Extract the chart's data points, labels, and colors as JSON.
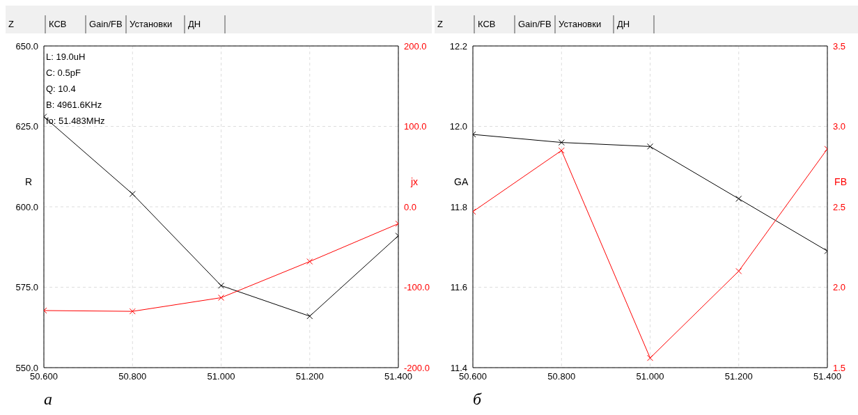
{
  "chart_data": [
    {
      "type": "line",
      "x": [
        50.6,
        50.8,
        51.0,
        51.2,
        51.4
      ],
      "xlim": [
        50.6,
        51.4
      ],
      "xticks": [
        {
          "value": 50.6,
          "label": "50.600"
        },
        {
          "value": 50.8,
          "label": "50.800"
        },
        {
          "value": 51.0,
          "label": "51.000"
        },
        {
          "value": 51.2,
          "label": "51.200"
        },
        {
          "value": 51.4,
          "label": "51.400"
        }
      ],
      "ylabel": "R",
      "y2label": "jx",
      "ylim": [
        550,
        650
      ],
      "yticks": [
        {
          "value": 550,
          "label": "550.0"
        },
        {
          "value": 575,
          "label": "575.0"
        },
        {
          "value": 600,
          "label": "600.0"
        },
        {
          "value": 625,
          "label": "625.0"
        },
        {
          "value": 650,
          "label": "650.0"
        }
      ],
      "y2lim": [
        -200,
        200
      ],
      "y2ticks": [
        {
          "value": -200,
          "label": "-200.0"
        },
        {
          "value": -100,
          "label": "-100.0"
        },
        {
          "value": 0,
          "label": "0.0"
        },
        {
          "value": 100,
          "label": "100.0"
        },
        {
          "value": 200,
          "label": "200.0"
        }
      ],
      "series": [
        {
          "color": "#000000",
          "values": [
            628,
            604,
            575.5,
            566,
            591
          ]
        },
        {
          "color": "#ff0000",
          "axis": "y2",
          "values": [
            -129,
            -130,
            -113,
            -68,
            -21
          ]
        }
      ],
      "grid": true,
      "marker": "cross",
      "line_style": "solid",
      "legend": false,
      "annotations": [
        "Z",
        "КСВ",
        "Gain/FB",
        "Установки",
        "ДН",
        "L: 19.0uH",
        "C: 0.5pF",
        "Q: 10.4",
        "B: 4961.6KHz",
        "fo: 51.483MHz",
        "а"
      ]
    },
    {
      "type": "line",
      "x": [
        50.6,
        50.8,
        51.0,
        51.2,
        51.4
      ],
      "xlim": [
        50.6,
        51.4
      ],
      "xticks": [
        {
          "value": 50.6,
          "label": "50.600"
        },
        {
          "value": 50.8,
          "label": "50.800"
        },
        {
          "value": 51.0,
          "label": "51.000"
        },
        {
          "value": 51.2,
          "label": "51.200"
        },
        {
          "value": 51.4,
          "label": "51.400"
        }
      ],
      "ylabel": "GA",
      "y2label": "FB",
      "ylim": [
        11.4,
        12.2
      ],
      "yticks": [
        11.4,
        11.6,
        11.8,
        {
          "value": 12,
          "label": "12.0"
        },
        12.2
      ],
      "y2lim": [
        1.5,
        3.5
      ],
      "y2ticks": [
        1.5,
        {
          "value": 2,
          "label": "2.0"
        },
        2.5,
        {
          "value": 3,
          "label": "3.0"
        },
        3.5
      ],
      "series": [
        {
          "color": "#000000",
          "values": [
            11.98,
            11.96,
            11.95,
            11.82,
            11.69
          ]
        },
        {
          "color": "#ff0000",
          "axis": "y2",
          "values": [
            2.47,
            2.85,
            1.56,
            2.1,
            2.86
          ]
        }
      ],
      "grid": true,
      "marker": "cross",
      "line_style": "solid",
      "legend": false,
      "annotations": [
        "Z",
        "КСВ",
        "Gain/FB",
        "Установки",
        "ДН",
        "б"
      ]
    }
  ]
}
